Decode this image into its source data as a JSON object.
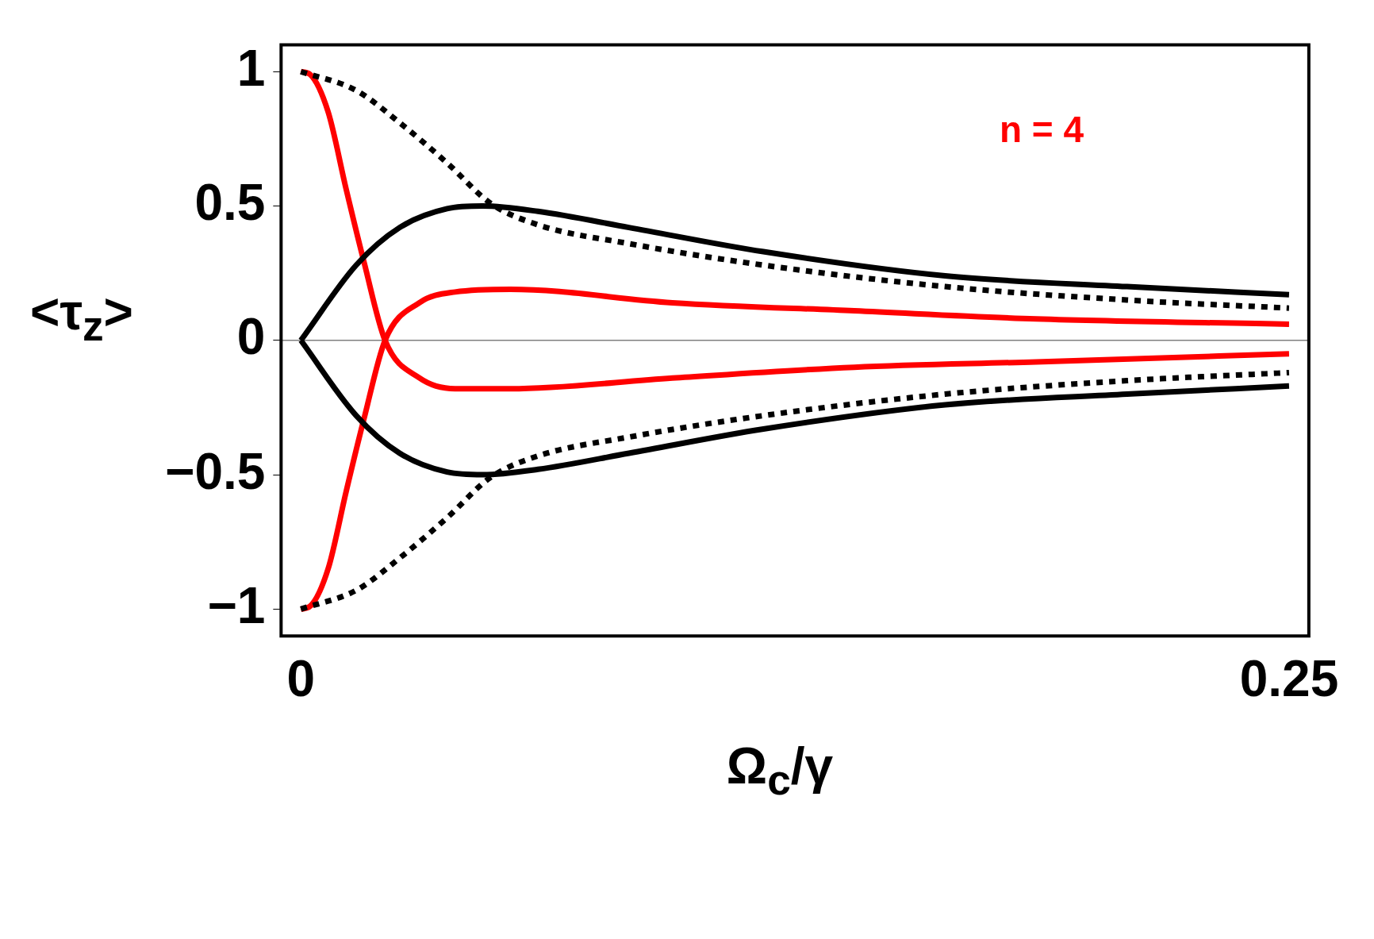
{
  "chart_data": {
    "type": "line",
    "ylabel": "<τ$_{z}$>",
    "xlabel": "Ω$_{c}$/γ",
    "annotations": [
      "n = 4"
    ],
    "xlim": [
      -0.005,
      0.255
    ],
    "ylim": [
      -1.1,
      1.1
    ],
    "xticks": [
      0,
      0.25
    ],
    "yticks": [
      {
        "value": -1,
        "label": "−1"
      },
      {
        "value": -0.5,
        "label": "−0.5"
      },
      0,
      0.5,
      1
    ],
    "grid": false,
    "legend": false,
    "marker": "none",
    "ref_lines": [
      {
        "axis": "y",
        "value": 0,
        "color": "#808080"
      }
    ],
    "series": [
      {
        "color": "#000000",
        "line_style": "solid",
        "x": [
          0,
          0.014,
          0.025,
          0.037,
          0.046,
          0.06,
          0.083,
          0.117,
          0.163,
          0.209,
          0.25
        ],
        "values": [
          0,
          0.28,
          0.42,
          0.49,
          0.5,
          0.48,
          0.42,
          0.33,
          0.24,
          0.2,
          0.17
        ]
      },
      {
        "color": "#000000",
        "line_style": "solid",
        "x": [
          0,
          0.014,
          0.025,
          0.037,
          0.046,
          0.06,
          0.083,
          0.117,
          0.163,
          0.209,
          0.25
        ],
        "values": [
          0,
          -0.28,
          -0.42,
          -0.49,
          -0.5,
          -0.48,
          -0.42,
          -0.33,
          -0.24,
          -0.2,
          -0.17
        ]
      },
      {
        "color": "#000000",
        "line_style": "dotted",
        "x": [
          0,
          0.014,
          0.025,
          0.037,
          0.048,
          0.06,
          0.083,
          0.117,
          0.163,
          0.209,
          0.25
        ],
        "values": [
          1,
          0.93,
          0.81,
          0.66,
          0.51,
          0.43,
          0.36,
          0.28,
          0.2,
          0.15,
          0.12
        ]
      },
      {
        "color": "#000000",
        "line_style": "dotted",
        "x": [
          0,
          0.014,
          0.025,
          0.037,
          0.048,
          0.06,
          0.083,
          0.117,
          0.163,
          0.209,
          0.25
        ],
        "values": [
          -1,
          -0.93,
          -0.81,
          -0.66,
          -0.51,
          -0.43,
          -0.36,
          -0.28,
          -0.2,
          -0.15,
          -0.12
        ]
      },
      {
        "color": "#ff0000",
        "line_style": "solid",
        "x": [
          0,
          0.0023,
          0.0069,
          0.0115,
          0.016,
          0.0213,
          0.03,
          0.039,
          0.053,
          0.094,
          0.14,
          0.186,
          0.25
        ],
        "values": [
          1,
          0.99,
          0.85,
          0.56,
          0.29,
          0,
          -0.14,
          -0.18,
          -0.18,
          -0.14,
          -0.1,
          -0.08,
          -0.05
        ]
      },
      {
        "color": "#ff0000",
        "line_style": "solid",
        "x": [
          0,
          0.0023,
          0.0069,
          0.0115,
          0.016,
          0.0213,
          0.03,
          0.039,
          0.053,
          0.094,
          0.14,
          0.186,
          0.25
        ],
        "values": [
          -1,
          -0.99,
          -0.85,
          -0.56,
          -0.29,
          0,
          0.14,
          0.18,
          0.19,
          0.14,
          0.11,
          0.08,
          0.06
        ]
      }
    ]
  }
}
